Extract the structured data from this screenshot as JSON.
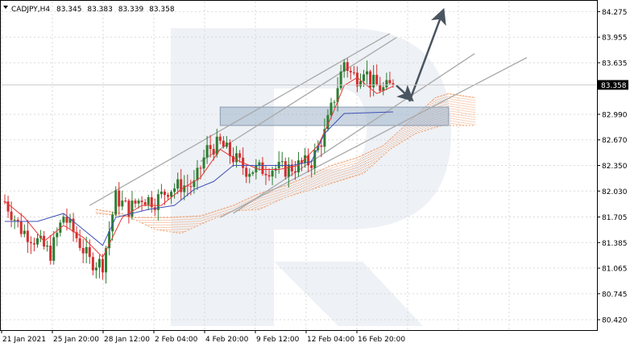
{
  "chart_data": {
    "type": "candlestick",
    "title": "CADJPY,H4",
    "header": {
      "symbol": "CADJPY,H4",
      "open": "83.345",
      "high": "83.383",
      "low": "83.339",
      "close": "83.358"
    },
    "ylim": [
      80.3,
      84.4
    ],
    "y_ticks": [
      "84.275",
      "83.955",
      "83.635",
      "83.358",
      "82.990",
      "82.670",
      "82.350",
      "82.030",
      "81.705",
      "81.385",
      "81.065",
      "80.745",
      "80.420"
    ],
    "current_price": "83.358",
    "x_ticks": [
      "21 Jan 2021",
      "25 Jan 20:00",
      "28 Jan 12:00",
      "2 Feb 04:00",
      "4 Feb 20:00",
      "9 Feb 12:00",
      "12 Feb 04:00",
      "16 Feb 20:00"
    ],
    "n_bars": 120,
    "colors": {
      "bull": "#2e7d32",
      "bear": "#d32f2f",
      "tenkan": "#e53935",
      "kijun": "#3f51b5",
      "cloud": "#f0a070",
      "channel": "#a9a9a9",
      "zone": "#9fb3c8",
      "arrow": "#4a5560",
      "watermark": "#eef1f5"
    },
    "swings": [
      [
        0,
        81.9
      ],
      [
        5,
        81.55
      ],
      [
        10,
        81.4
      ],
      [
        14,
        81.25
      ],
      [
        18,
        81.72
      ],
      [
        22,
        81.45
      ],
      [
        26,
        81.15
      ],
      [
        30,
        81.12
      ],
      [
        34,
        81.95
      ],
      [
        38,
        81.8
      ],
      [
        42,
        81.95
      ],
      [
        46,
        81.9
      ],
      [
        50,
        82.05
      ],
      [
        54,
        82.1
      ],
      [
        58,
        82.1
      ],
      [
        62,
        82.55
      ],
      [
        66,
        82.62
      ],
      [
        70,
        82.45
      ],
      [
        74,
        82.3
      ],
      [
        78,
        82.3
      ],
      [
        82,
        82.32
      ],
      [
        86,
        82.3
      ],
      [
        90,
        82.35
      ],
      [
        94,
        82.4
      ],
      [
        98,
        82.75
      ],
      [
        102,
        83.35
      ],
      [
        104,
        83.65
      ],
      [
        106,
        83.5
      ],
      [
        108,
        83.45
      ],
      [
        110,
        83.58
      ],
      [
        112,
        83.4
      ],
      [
        114,
        83.35
      ],
      [
        116,
        83.3
      ],
      [
        119,
        83.358
      ]
    ],
    "tenkan": [
      [
        0,
        81.9
      ],
      [
        6,
        81.7
      ],
      [
        12,
        81.4
      ],
      [
        18,
        81.6
      ],
      [
        24,
        81.45
      ],
      [
        30,
        81.2
      ],
      [
        36,
        81.7
      ],
      [
        42,
        81.85
      ],
      [
        48,
        81.85
      ],
      [
        54,
        82.05
      ],
      [
        60,
        82.2
      ],
      [
        66,
        82.55
      ],
      [
        72,
        82.4
      ],
      [
        78,
        82.3
      ],
      [
        84,
        82.3
      ],
      [
        90,
        82.35
      ],
      [
        96,
        82.6
      ],
      [
        100,
        82.95
      ],
      [
        104,
        83.35
      ],
      [
        108,
        83.45
      ],
      [
        114,
        83.25
      ],
      [
        119,
        83.34
      ]
    ],
    "kijun": [
      [
        0,
        81.65
      ],
      [
        10,
        81.65
      ],
      [
        18,
        81.75
      ],
      [
        24,
        81.55
      ],
      [
        30,
        81.35
      ],
      [
        34,
        81.7
      ],
      [
        44,
        81.8
      ],
      [
        52,
        81.85
      ],
      [
        58,
        82.05
      ],
      [
        64,
        82.15
      ],
      [
        70,
        82.35
      ],
      [
        76,
        82.35
      ],
      [
        88,
        82.35
      ],
      [
        94,
        82.4
      ],
      [
        98,
        82.75
      ],
      [
        104,
        83.0
      ],
      [
        119,
        83.02
      ]
    ],
    "cloud_a": [
      [
        28,
        81.75
      ],
      [
        40,
        81.7
      ],
      [
        50,
        81.7
      ],
      [
        60,
        81.72
      ],
      [
        70,
        81.85
      ],
      [
        78,
        82.0
      ],
      [
        86,
        82.1
      ],
      [
        92,
        82.2
      ],
      [
        100,
        82.35
      ],
      [
        108,
        82.45
      ],
      [
        116,
        82.6
      ],
      [
        124,
        82.9
      ],
      [
        132,
        83.2
      ],
      [
        136,
        83.25
      ],
      [
        144,
        83.2
      ]
    ],
    "cloud_b": [
      [
        28,
        81.8
      ],
      [
        36,
        81.75
      ],
      [
        46,
        81.55
      ],
      [
        54,
        81.5
      ],
      [
        62,
        81.65
      ],
      [
        70,
        81.78
      ],
      [
        78,
        81.8
      ],
      [
        86,
        81.95
      ],
      [
        94,
        82.05
      ],
      [
        102,
        82.15
      ],
      [
        110,
        82.25
      ],
      [
        118,
        82.55
      ],
      [
        126,
        82.75
      ],
      [
        134,
        82.85
      ],
      [
        144,
        82.85
      ]
    ],
    "channel_upper": [
      [
        26,
        81.85
      ],
      [
        118,
        84.0
      ]
    ],
    "channel_upper2": [
      [
        60,
        82.4
      ],
      [
        120,
        83.95
      ]
    ],
    "channel_mid": [
      [
        70,
        81.75
      ],
      [
        144,
        83.75
      ]
    ],
    "channel_lower": [
      [
        66,
        81.7
      ],
      [
        160,
        83.7
      ]
    ],
    "zone": {
      "y_top": 83.08,
      "y_bottom": 82.85,
      "x_start": 66,
      "x_end": 136
    },
    "arrows": [
      {
        "from": [
          120,
          83.35
        ],
        "to": [
          124,
          83.2
        ]
      },
      {
        "from": [
          124,
          83.15
        ],
        "to": [
          134,
          84.25
        ]
      }
    ]
  }
}
